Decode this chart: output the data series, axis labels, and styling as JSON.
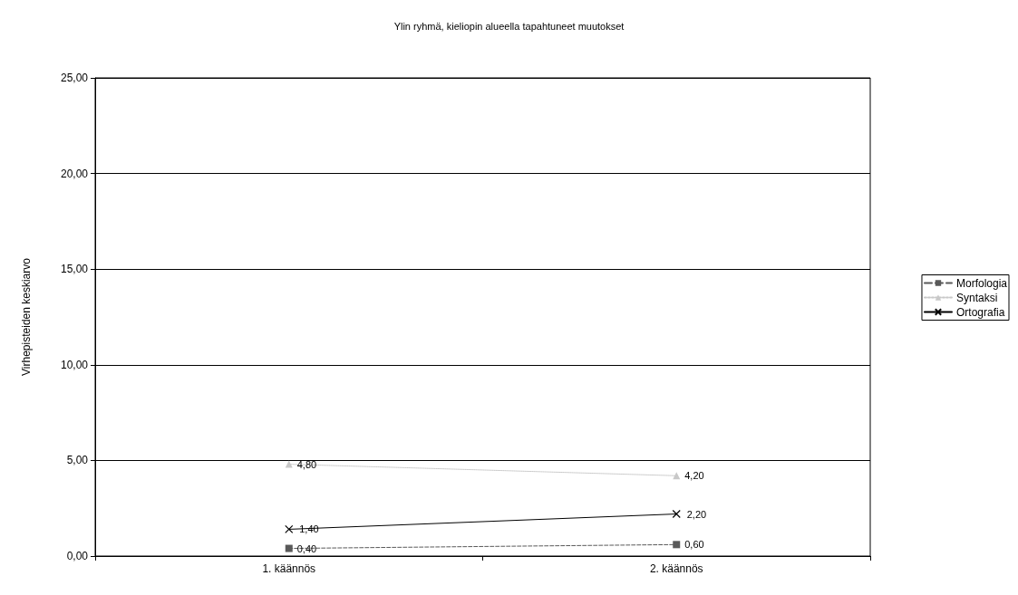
{
  "chart_data": {
    "type": "line",
    "title": "Ylin ryhmä, kieliopin alueella tapahtuneet muutokset",
    "ylabel": "Virhepisteiden keskiarvo",
    "categories": [
      "1. käännös",
      "2. käännös"
    ],
    "series": [
      {
        "name": "Morfologia",
        "color": "#595959",
        "values": [
          0.4,
          0.6
        ],
        "value_labels": [
          "0,40",
          "0,60"
        ],
        "marker": "square",
        "line_style": "dashed"
      },
      {
        "name": "Syntaksi",
        "color": "#c8c8c8",
        "values": [
          4.8,
          4.2
        ],
        "value_labels": [
          "4,80",
          "4,20"
        ],
        "marker": "triangle",
        "line_style": "dotted"
      },
      {
        "name": "Ortografia",
        "color": "#000000",
        "values": [
          1.4,
          2.2
        ],
        "value_labels": [
          "1,40",
          "2,20"
        ],
        "marker": "cross",
        "line_style": "solid"
      }
    ],
    "ylim": [
      0,
      25
    ],
    "yticks": [
      {
        "value": 0,
        "label": "0,00"
      },
      {
        "value": 5,
        "label": "5,00"
      },
      {
        "value": 10,
        "label": "10,00"
      },
      {
        "value": 15,
        "label": "15,00"
      },
      {
        "value": 20,
        "label": "20,00"
      },
      {
        "value": 25,
        "label": "25,00"
      }
    ],
    "grid": "y",
    "legend": "right"
  }
}
